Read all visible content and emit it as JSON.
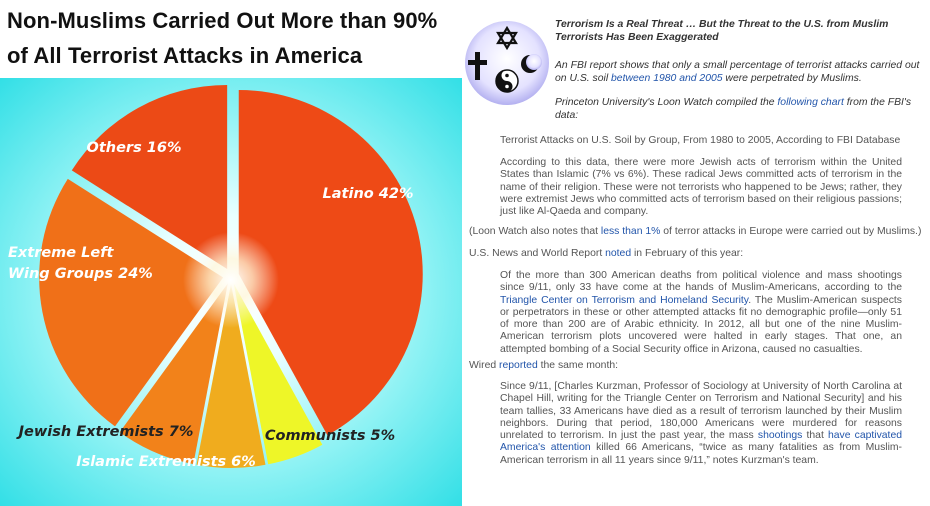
{
  "headline": {
    "line1": "Non-Muslims Carried Out More than 90%",
    "line2": "of All Terrorist  Attacks in America"
  },
  "chart_data": {
    "type": "pie",
    "title": "Non-Muslims Carried Out More than 90% of All Terrorist Attacks in America",
    "labels": [
      "Latino 42%",
      "Communists 5%",
      "Islamic Extremists 6%",
      "Jewish Extremists 7%",
      "Extreme Left Wing Groups 24%",
      "Others 16%"
    ],
    "categories": [
      "Latino",
      "Communists",
      "Islamic Extremists",
      "Jewish Extremists",
      "Extreme Left Wing Groups",
      "Others"
    ],
    "values": [
      42,
      5,
      6,
      7,
      24,
      16
    ],
    "colors": [
      "#ee4a16",
      "#eef628",
      "#f0ac1e",
      "#f2821a",
      "#f07018",
      "#ec4a16"
    ],
    "label_colors": [
      "#ffffff",
      "#222222",
      "#ffffff",
      "#222222",
      "#ffffff",
      "#ffffff"
    ],
    "background": "#32dfe6",
    "exploded": true,
    "legend": "none"
  },
  "article": {
    "logo_icon": "coexist-religious-symbols-icon",
    "intro_title": "Terrorism Is a Real Threat … But the Threat to the U.S. from Muslim Terrorists Has Been Exaggerated",
    "intro_p1_a": "An FBI report shows that only a small percentage of terrorist attacks carried out on U.S. soil ",
    "intro_p1_link": "between 1980 and 2005",
    "intro_p1_b": " were perpetrated by Muslims.",
    "intro_p2_a": "Princeton University's Loon Watch compiled the ",
    "intro_p2_link": "following chart",
    "intro_p2_b": " from the FBI's data:",
    "chart_caption": "Terrorist Attacks on U.S. Soil by Group, From 1980 to 2005, According to FBI Database",
    "quote1": "According to this data, there were more Jewish acts of terrorism within the United States than Islamic (7% vs 6%).  These radical Jews committed acts of terrorism in the name of their religion.  These were not terrorists who happened to be Jews; rather, they were extremist Jews who committed acts of terrorism based on their religious passions; just like Al-Qaeda and company.",
    "europe_a": "(Loon Watch also notes that ",
    "europe_link": "less than 1%",
    "europe_b": " of terror attacks in Europe were carried out by Muslims.)",
    "usnews_a": "U.S. News and World Report ",
    "usnews_link": "noted",
    "usnews_b": " in February of this year:",
    "quote2_a": "Of the more than 300 American deaths from political violence and mass shootings since 9/11, only 33 have come at the hands of Muslim-Americans, according to the ",
    "quote2_link": "Triangle Center on Terrorism and Homeland Security",
    "quote2_b": ". The Muslim-American suspects or perpetrators in these or other attempted attacks fit no demographic profile—only 51 of more than 200 are of Arabic ethnicity. In 2012, all but one of the nine Muslim-American terrorism plots uncovered were halted in early stages. That one, an attempted bombing of a Social Security office in Arizona, caused no casualties.",
    "wired_a": "Wired ",
    "wired_link": "reported",
    "wired_b": " the same month:",
    "quote3_a": "Since 9/11, [Charles Kurzman, Professor of Sociology at University of North Carolina at Chapel Hill, writing for the Triangle Center on Terrorism and National Security] and his team tallies, 33 Americans have died as a result of terrorism launched by their Muslim neighbors. During that period, 180,000 Americans were murdered for reasons unrelated to terrorism. In just the past year, the mass ",
    "quote3_link1": "shootings",
    "quote3_mid": " that ",
    "quote3_link2": "have captivated America's attention",
    "quote3_b": " killed 66 Americans, “twice as many fatalities as from Muslim-American terrorism in all 11 years since 9/11,” notes Kurzman's team."
  }
}
